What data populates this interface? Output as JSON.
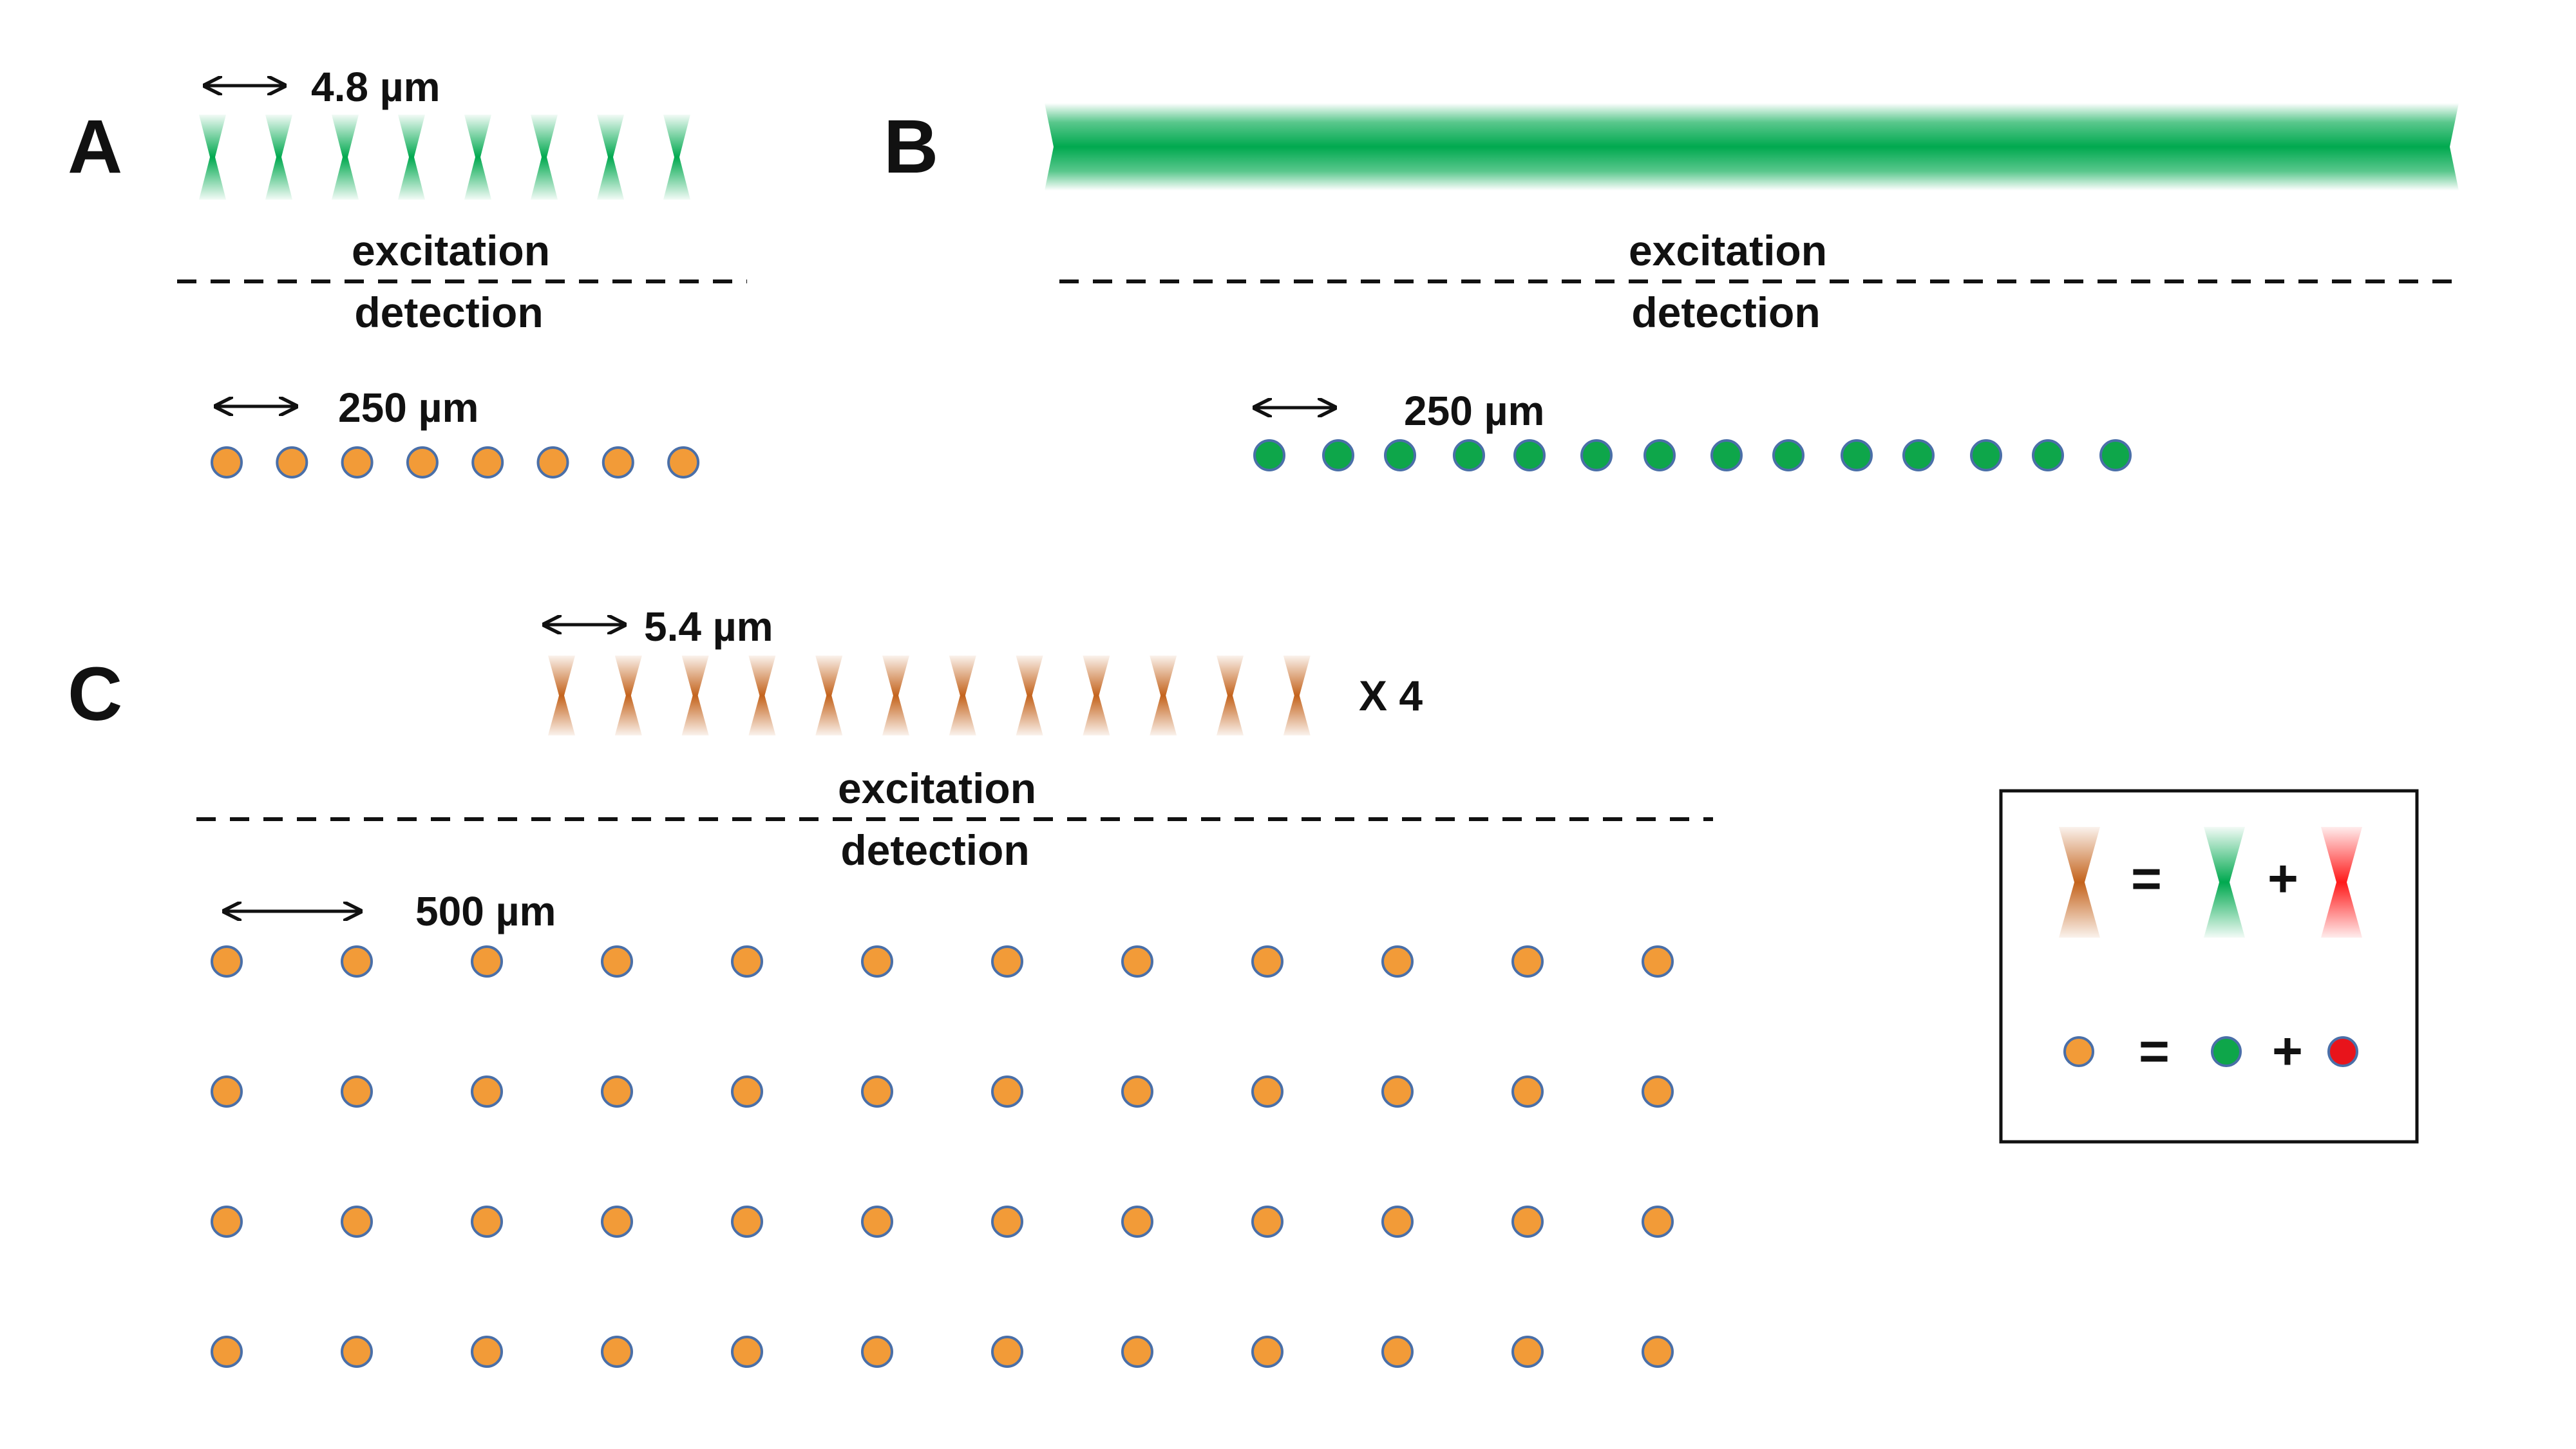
{
  "colors": {
    "green": "#00a94f",
    "orange": "#f29b38",
    "brown": "#c4631c",
    "red": "#ff1a1a",
    "dot_green": "#0ea64a",
    "dot_red": "#e8141b",
    "dot_stroke": "#4a6fa8",
    "dashes": "#111111"
  },
  "panels": {
    "A": {
      "letter": "A",
      "beam_spacing_label": "4.8 µm",
      "beam_count": 8,
      "beam_color": "green",
      "excitation_label": "excitation",
      "detection_label": "detection",
      "detector_spacing_label": "250 µm",
      "detector_count": 8,
      "detector_color": "orange"
    },
    "B": {
      "letter": "B",
      "beam_type": "continuous green light sheet",
      "excitation_label": "excitation",
      "detection_label": "detection",
      "detector_spacing_label": "250 µm",
      "detector_count": 14,
      "detector_color": "green"
    },
    "C": {
      "letter": "C",
      "beam_spacing_label": "5.4 µm",
      "beam_count": 12,
      "beam_color": "brown",
      "multiplier_label": "X 4",
      "excitation_label": "excitation",
      "detection_label": "detection",
      "detector_spacing_label": "500 µm",
      "detector_rows": 4,
      "detector_cols": 12,
      "detector_color": "orange"
    }
  },
  "legend": {
    "equals": "=",
    "plus": "+",
    "row1": [
      "brown-beam",
      "green-beam",
      "red-beam"
    ],
    "row2": [
      "orange-dot",
      "green-dot",
      "red-dot"
    ]
  }
}
